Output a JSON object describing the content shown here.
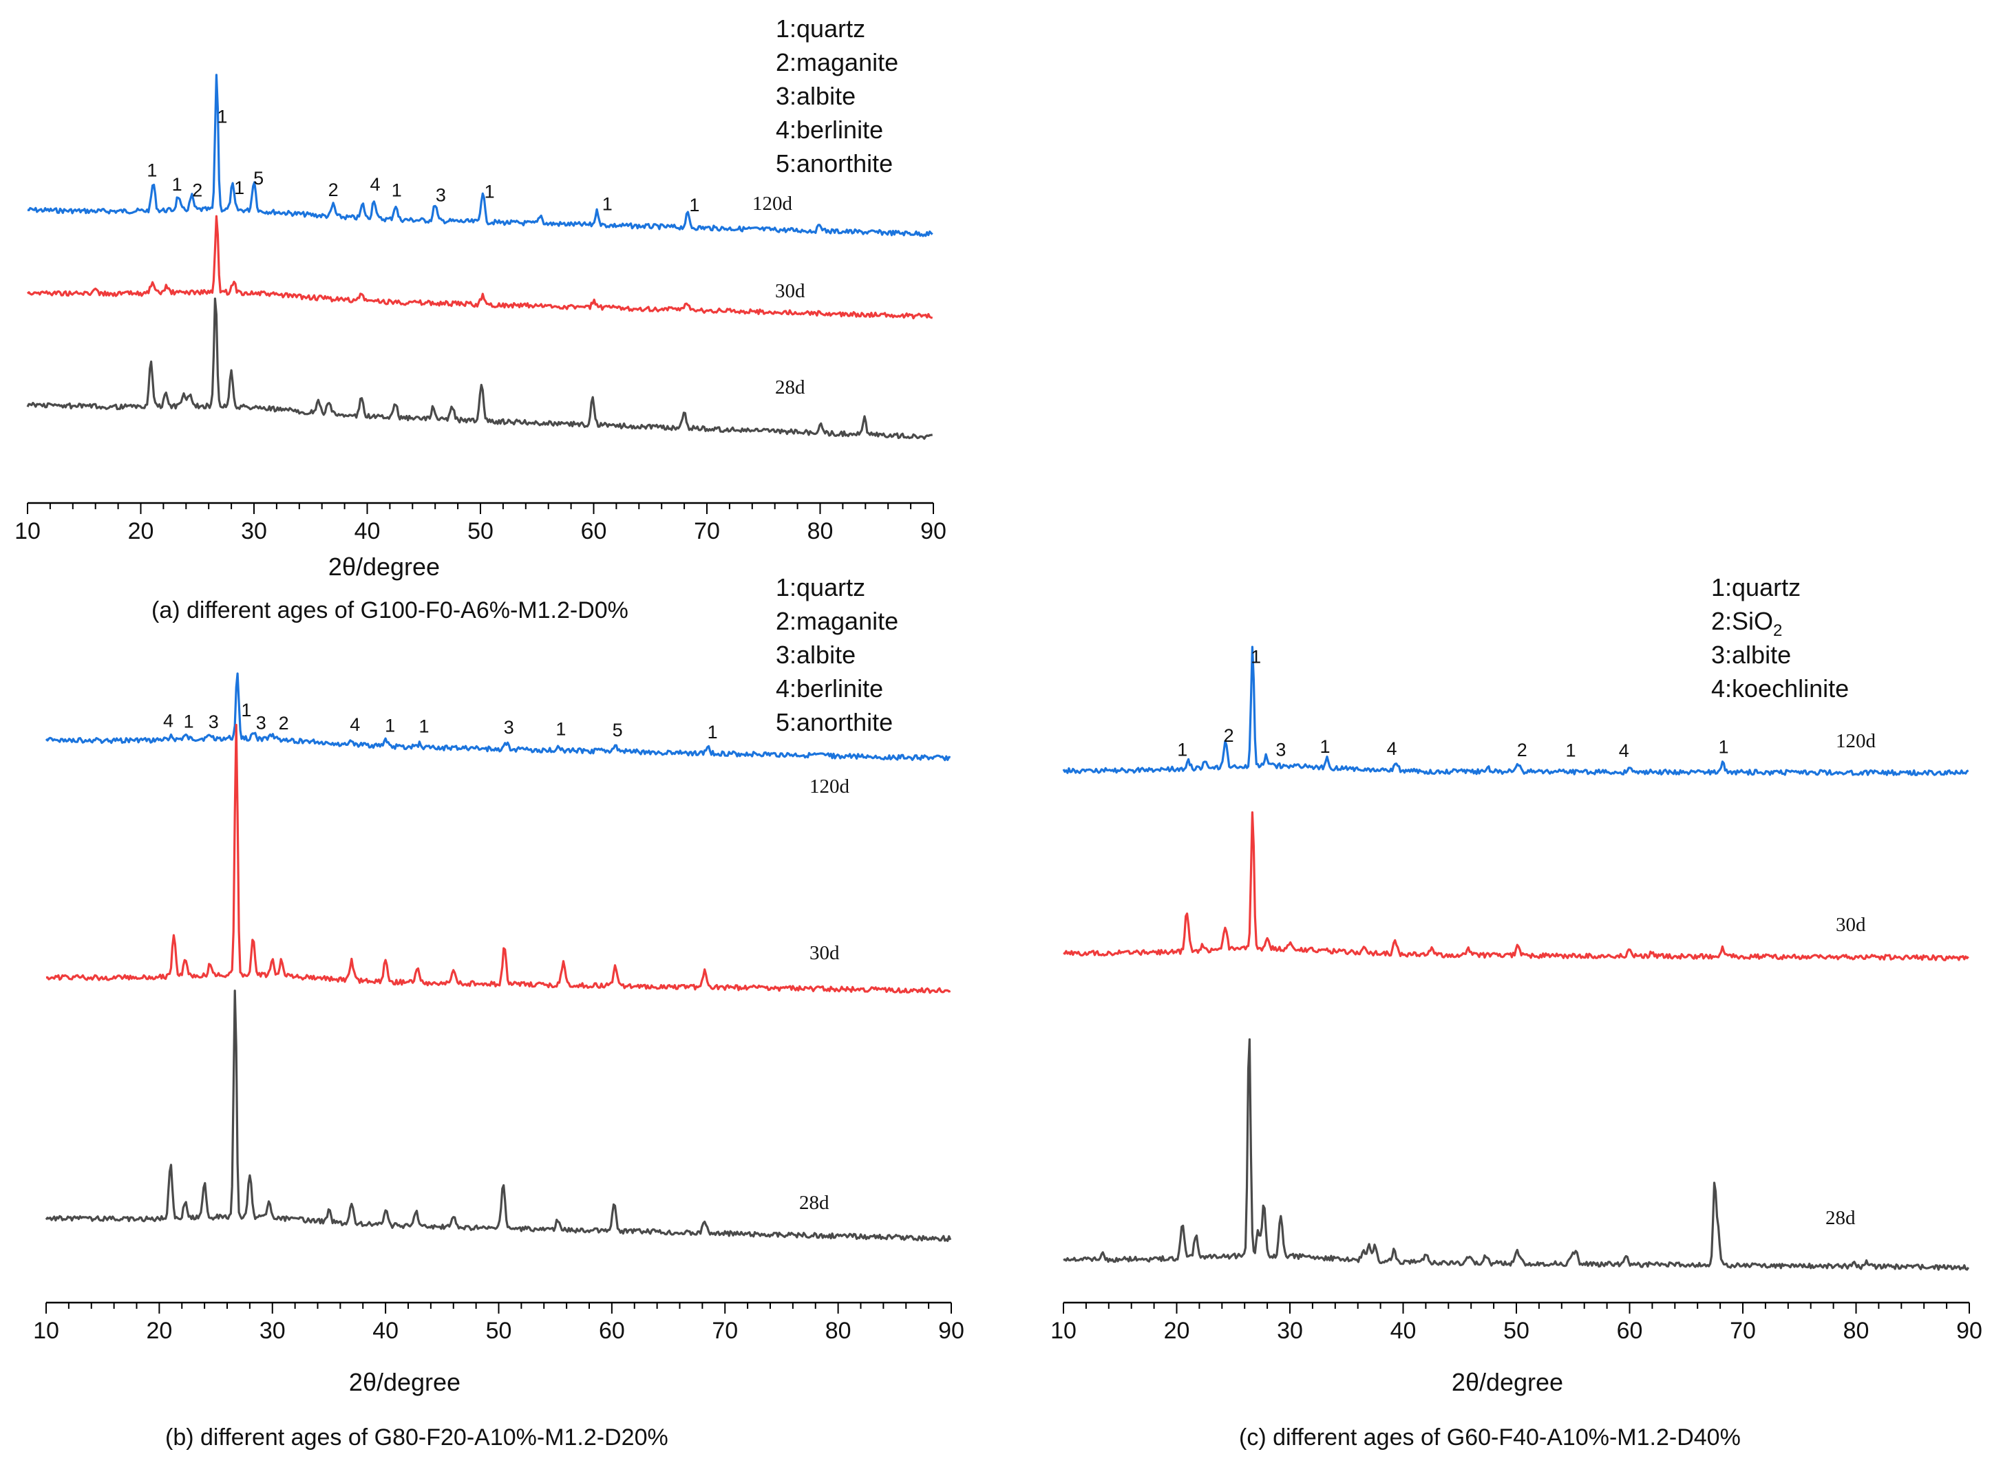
{
  "chart_data": [
    {
      "id": "a",
      "type": "line",
      "title": "(a) different ages of G100-F0-A6%-M1.2-D0%",
      "xlabel": "2θ/degree",
      "ylabel": "",
      "xlim": [
        10,
        90
      ],
      "xticks": [
        "10",
        "20",
        "30",
        "40",
        "50",
        "60",
        "70",
        "80",
        "90"
      ],
      "legend": [
        "1:quartz",
        "2:maganite",
        "3:albite",
        "4:berlinite",
        "5:anorthite"
      ],
      "series": [
        {
          "name": "120d",
          "color": "#1b74dd",
          "peaks": [
            [
              21.1,
              0.2
            ],
            [
              23.3,
              0.1
            ],
            [
              24.5,
              0.1
            ],
            [
              26.7,
              1.0
            ],
            [
              28.1,
              0.18
            ],
            [
              30.0,
              0.22
            ],
            [
              37.0,
              0.09
            ],
            [
              39.6,
              0.1
            ],
            [
              40.6,
              0.14
            ],
            [
              42.5,
              0.1
            ],
            [
              46.0,
              0.12
            ],
            [
              50.2,
              0.22
            ],
            [
              55.3,
              0.06
            ],
            [
              60.3,
              0.1
            ],
            [
              68.3,
              0.1
            ],
            [
              80.0,
              0.05
            ]
          ]
        },
        {
          "name": "30d",
          "color": "#ef3b3b",
          "peaks": [
            [
              16.0,
              0.05
            ],
            [
              21.0,
              0.07
            ],
            [
              22.3,
              0.05
            ],
            [
              26.7,
              0.55
            ],
            [
              28.2,
              0.08
            ],
            [
              39.5,
              0.05
            ],
            [
              50.2,
              0.07
            ],
            [
              60.0,
              0.05
            ],
            [
              68.2,
              0.06
            ]
          ]
        },
        {
          "name": "28d",
          "color": "#4a4a4a",
          "peaks": [
            [
              20.9,
              0.32
            ],
            [
              22.2,
              0.1
            ],
            [
              23.8,
              0.1
            ],
            [
              24.3,
              0.08
            ],
            [
              26.6,
              0.82
            ],
            [
              28.0,
              0.25
            ],
            [
              35.7,
              0.08
            ],
            [
              36.6,
              0.09
            ],
            [
              39.5,
              0.14
            ],
            [
              42.5,
              0.1
            ],
            [
              45.8,
              0.08
            ],
            [
              47.5,
              0.1
            ],
            [
              50.1,
              0.28
            ],
            [
              59.9,
              0.2
            ],
            [
              68.0,
              0.12
            ],
            [
              80.0,
              0.06
            ],
            [
              83.9,
              0.12
            ]
          ]
        }
      ],
      "peak_labels": [
        {
          "x": 21.0,
          "text": "1"
        },
        {
          "x": 23.2,
          "text": "1"
        },
        {
          "x": 25.0,
          "text": "2"
        },
        {
          "x": 27.2,
          "text": "1"
        },
        {
          "x": 28.7,
          "text": "1"
        },
        {
          "x": 30.4,
          "text": "5"
        },
        {
          "x": 37.0,
          "text": "2"
        },
        {
          "x": 40.7,
          "text": "4"
        },
        {
          "x": 42.6,
          "text": "1"
        },
        {
          "x": 46.5,
          "text": "3"
        },
        {
          "x": 50.8,
          "text": "1"
        },
        {
          "x": 61.2,
          "text": "1"
        },
        {
          "x": 68.9,
          "text": "1"
        }
      ]
    },
    {
      "id": "b",
      "type": "line",
      "title": "(b) different ages of G80-F20-A10%-M1.2-D20%",
      "xlabel": "2θ/degree",
      "ylabel": "",
      "xlim": [
        10,
        90
      ],
      "xticks": [
        "10",
        "20",
        "30",
        "40",
        "50",
        "60",
        "70",
        "80",
        "90"
      ],
      "legend": [
        "1:quartz",
        "2:maganite",
        "3:albite",
        "4:berlinite",
        "5:anorthite"
      ],
      "series": [
        {
          "name": "120d",
          "color": "#1b74dd",
          "peaks": [
            [
              21.0,
              0.04
            ],
            [
              22.3,
              0.03
            ],
            [
              24.5,
              0.03
            ],
            [
              26.9,
              0.6
            ],
            [
              28.3,
              0.06
            ],
            [
              30.0,
              0.05
            ],
            [
              37.0,
              0.04
            ],
            [
              40.0,
              0.06
            ],
            [
              43.0,
              0.03
            ],
            [
              50.7,
              0.06
            ],
            [
              55.3,
              0.04
            ],
            [
              60.3,
              0.05
            ],
            [
              68.5,
              0.06
            ]
          ]
        },
        {
          "name": "30d",
          "color": "#ef3b3b",
          "peaks": [
            [
              21.3,
              0.38
            ],
            [
              22.3,
              0.16
            ],
            [
              24.5,
              0.1
            ],
            [
              26.8,
              2.28
            ],
            [
              28.3,
              0.32
            ],
            [
              30.0,
              0.15
            ],
            [
              30.8,
              0.15
            ],
            [
              37.0,
              0.18
            ],
            [
              40.0,
              0.2
            ],
            [
              42.8,
              0.14
            ],
            [
              46.0,
              0.14
            ],
            [
              50.5,
              0.35
            ],
            [
              55.7,
              0.2
            ],
            [
              60.3,
              0.18
            ],
            [
              68.2,
              0.14
            ]
          ]
        },
        {
          "name": "28d",
          "color": "#4a4a4a",
          "peaks": [
            [
              21.0,
              0.5
            ],
            [
              22.3,
              0.15
            ],
            [
              24.0,
              0.3
            ],
            [
              26.7,
              2.1
            ],
            [
              28.0,
              0.4
            ],
            [
              29.7,
              0.14
            ],
            [
              35.0,
              0.1
            ],
            [
              37.0,
              0.18
            ],
            [
              40.0,
              0.15
            ],
            [
              42.7,
              0.15
            ],
            [
              46.0,
              0.1
            ],
            [
              50.4,
              0.42
            ],
            [
              55.2,
              0.08
            ],
            [
              60.2,
              0.25
            ],
            [
              68.2,
              0.12
            ]
          ]
        }
      ],
      "peak_labels": [
        {
          "x": 20.8,
          "text": "4"
        },
        {
          "x": 22.6,
          "text": "1"
        },
        {
          "x": 24.8,
          "text": "3"
        },
        {
          "x": 27.7,
          "text": "1"
        },
        {
          "x": 29.0,
          "text": "3"
        },
        {
          "x": 31.0,
          "text": "2"
        },
        {
          "x": 37.3,
          "text": "4"
        },
        {
          "x": 40.4,
          "text": "1"
        },
        {
          "x": 43.4,
          "text": "1"
        },
        {
          "x": 50.9,
          "text": "3"
        },
        {
          "x": 55.5,
          "text": "1"
        },
        {
          "x": 60.5,
          "text": "5"
        },
        {
          "x": 68.9,
          "text": "1"
        }
      ]
    },
    {
      "id": "c",
      "type": "line",
      "title": "(c) different ages of G60-F40-A10%-M1.2-D40%",
      "xlabel": "2θ/degree",
      "ylabel": "",
      "xlim": [
        10,
        90
      ],
      "xticks": [
        "10",
        "20",
        "30",
        "40",
        "50",
        "60",
        "70",
        "80",
        "90"
      ],
      "legend": [
        "1:quartz",
        "2:SiO",
        "3:albite",
        "4:koechlinite"
      ],
      "legend_sub": "2",
      "series": [
        {
          "name": "120d",
          "color": "#1b74dd",
          "peaks": [
            [
              21.0,
              0.06
            ],
            [
              22.5,
              0.04
            ],
            [
              24.3,
              0.2
            ],
            [
              26.7,
              1.0
            ],
            [
              27.9,
              0.08
            ],
            [
              33.3,
              0.08
            ],
            [
              39.4,
              0.08
            ],
            [
              47.5,
              0.04
            ],
            [
              50.2,
              0.06
            ],
            [
              60.0,
              0.05
            ],
            [
              68.2,
              0.08
            ]
          ]
        },
        {
          "name": "30d",
          "color": "#ef3b3b",
          "peaks": [
            [
              20.9,
              0.34
            ],
            [
              22.3,
              0.04
            ],
            [
              24.3,
              0.2
            ],
            [
              26.7,
              1.17
            ],
            [
              28.0,
              0.1
            ],
            [
              30.0,
              0.05
            ],
            [
              36.6,
              0.05
            ],
            [
              39.3,
              0.12
            ],
            [
              42.5,
              0.06
            ],
            [
              45.8,
              0.05
            ],
            [
              50.1,
              0.07
            ],
            [
              60.0,
              0.05
            ],
            [
              62.0,
              0.04
            ],
            [
              68.2,
              0.07
            ],
            [
              81.5,
              0.03
            ]
          ]
        },
        {
          "name": "28d",
          "color": "#4a4a4a",
          "peaks": [
            [
              13.4,
              0.05
            ],
            [
              20.5,
              0.3
            ],
            [
              21.7,
              0.2
            ],
            [
              26.4,
              1.92
            ],
            [
              27.2,
              0.2
            ],
            [
              27.7,
              0.43
            ],
            [
              29.2,
              0.35
            ],
            [
              36.5,
              0.1
            ],
            [
              37.0,
              0.12
            ],
            [
              37.5,
              0.12
            ],
            [
              39.2,
              0.1
            ],
            [
              42.0,
              0.07
            ],
            [
              45.8,
              0.06
            ],
            [
              47.3,
              0.07
            ],
            [
              50.0,
              0.1
            ],
            [
              50.4,
              0.06
            ],
            [
              54.9,
              0.08
            ],
            [
              55.3,
              0.1
            ],
            [
              59.7,
              0.08
            ],
            [
              67.5,
              0.65
            ],
            [
              67.8,
              0.3
            ],
            [
              79.8,
              0.05
            ],
            [
              81.0,
              0.04
            ]
          ]
        }
      ],
      "peak_labels": [
        {
          "x": 20.5,
          "text": "1"
        },
        {
          "x": 24.6,
          "text": "2"
        },
        {
          "x": 27.0,
          "text": "1"
        },
        {
          "x": 29.2,
          "text": "3"
        },
        {
          "x": 33.1,
          "text": "1"
        },
        {
          "x": 39.0,
          "text": "4"
        },
        {
          "x": 50.5,
          "text": "2"
        },
        {
          "x": 54.8,
          "text": "1"
        },
        {
          "x": 59.5,
          "text": "4"
        },
        {
          "x": 68.3,
          "text": "1"
        }
      ]
    }
  ]
}
